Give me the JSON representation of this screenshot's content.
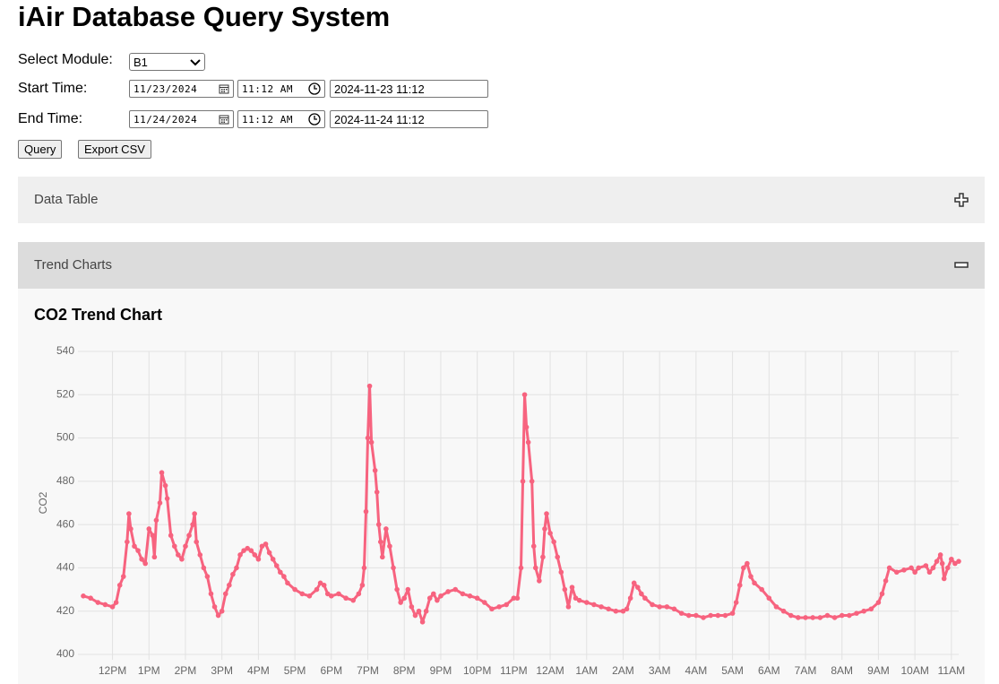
{
  "header": {
    "title": "iAir Database Query System"
  },
  "form": {
    "module_label": "Select Module:",
    "module_value": "B1",
    "start_label": "Start Time:",
    "start_date": "11/23/2024",
    "start_clock": "11:12 AM",
    "start_text": "2024-11-23 11:12",
    "end_label": "End Time:",
    "end_date": "11/24/2024",
    "end_clock": "11:12 AM",
    "end_text": "2024-11-24 11:12",
    "query_button": "Query",
    "export_button": "Export CSV"
  },
  "panels": [
    "Data Table",
    "Trend Charts"
  ],
  "chart_data": {
    "type": "line",
    "title": "CO2 Trend Chart",
    "y_label": "CO2",
    "color": "#f7637f",
    "grid": true,
    "xlim": [
      11.2,
      35.2
    ],
    "ylim": [
      400,
      540
    ],
    "xticks": [
      {
        "value": 12,
        "label": "12PM"
      },
      {
        "value": 13,
        "label": "1PM"
      },
      {
        "value": 14,
        "label": "2PM"
      },
      {
        "value": 15,
        "label": "3PM"
      },
      {
        "value": 16,
        "label": "4PM"
      },
      {
        "value": 17,
        "label": "5PM"
      },
      {
        "value": 18,
        "label": "6PM"
      },
      {
        "value": 19,
        "label": "7PM"
      },
      {
        "value": 20,
        "label": "8PM"
      },
      {
        "value": 21,
        "label": "9PM"
      },
      {
        "value": 22,
        "label": "10PM"
      },
      {
        "value": 23,
        "label": "11PM"
      },
      {
        "value": 24,
        "label": "12AM"
      },
      {
        "value": 25,
        "label": "1AM"
      },
      {
        "value": 26,
        "label": "2AM"
      },
      {
        "value": 27,
        "label": "3AM"
      },
      {
        "value": 28,
        "label": "4AM"
      },
      {
        "value": 29,
        "label": "5AM"
      },
      {
        "value": 30,
        "label": "6AM"
      },
      {
        "value": 31,
        "label": "7AM"
      },
      {
        "value": 32,
        "label": "8AM"
      },
      {
        "value": 33,
        "label": "9AM"
      },
      {
        "value": 34,
        "label": "10AM"
      },
      {
        "value": 35,
        "label": "11AM"
      }
    ],
    "yticks": [
      400,
      420,
      440,
      460,
      480,
      500,
      520,
      540
    ],
    "x": [
      11.2,
      11.4,
      11.6,
      11.8,
      12.0,
      12.1,
      12.2,
      12.3,
      12.4,
      12.45,
      12.5,
      12.6,
      12.7,
      12.8,
      12.9,
      13.0,
      13.1,
      13.15,
      13.2,
      13.3,
      13.35,
      13.45,
      13.5,
      13.6,
      13.7,
      13.8,
      13.9,
      14.0,
      14.1,
      14.2,
      14.25,
      14.3,
      14.4,
      14.5,
      14.6,
      14.7,
      14.8,
      14.9,
      15.0,
      15.1,
      15.2,
      15.3,
      15.4,
      15.5,
      15.6,
      15.7,
      15.8,
      15.9,
      16.0,
      16.1,
      16.2,
      16.3,
      16.4,
      16.5,
      16.6,
      16.7,
      16.8,
      17.0,
      17.2,
      17.4,
      17.6,
      17.7,
      17.8,
      17.9,
      18.0,
      18.2,
      18.4,
      18.6,
      18.75,
      18.85,
      18.9,
      18.95,
      19.0,
      19.05,
      19.1,
      19.2,
      19.25,
      19.3,
      19.35,
      19.4,
      19.5,
      19.6,
      19.7,
      19.8,
      19.9,
      20.0,
      20.1,
      20.2,
      20.3,
      20.4,
      20.5,
      20.6,
      20.7,
      20.8,
      20.9,
      21.0,
      21.2,
      21.4,
      21.6,
      21.8,
      22.0,
      22.2,
      22.4,
      22.6,
      22.8,
      23.0,
      23.1,
      23.2,
      23.25,
      23.3,
      23.35,
      23.4,
      23.5,
      23.55,
      23.6,
      23.7,
      23.8,
      23.85,
      23.9,
      24.0,
      24.1,
      24.2,
      24.3,
      24.4,
      24.5,
      24.6,
      24.7,
      24.8,
      25.0,
      25.2,
      25.4,
      25.6,
      25.8,
      26.0,
      26.1,
      26.2,
      26.3,
      26.4,
      26.5,
      26.6,
      26.8,
      27.0,
      27.2,
      27.4,
      27.6,
      27.8,
      28.0,
      28.2,
      28.4,
      28.6,
      28.8,
      29.0,
      29.1,
      29.2,
      29.3,
      29.4,
      29.5,
      29.6,
      29.8,
      30.0,
      30.2,
      30.4,
      30.6,
      30.8,
      31.0,
      31.2,
      31.4,
      31.6,
      31.8,
      32.0,
      32.2,
      32.4,
      32.6,
      32.8,
      33.0,
      33.1,
      33.2,
      33.3,
      33.5,
      33.7,
      33.9,
      34.0,
      34.1,
      34.3,
      34.4,
      34.5,
      34.6,
      34.7,
      34.75,
      34.8,
      34.9,
      35.0,
      35.1,
      35.2
    ],
    "values": [
      427,
      426,
      424,
      423,
      422,
      424,
      432,
      436,
      452,
      465,
      458,
      450,
      448,
      444,
      442,
      458,
      455,
      445,
      462,
      470,
      484,
      478,
      472,
      455,
      450,
      446,
      444,
      450,
      455,
      460,
      465,
      452,
      446,
      440,
      436,
      428,
      422,
      418,
      420,
      428,
      432,
      437,
      440,
      446,
      448,
      449,
      448,
      446,
      444,
      450,
      451,
      447,
      444,
      441,
      438,
      436,
      433,
      430,
      428,
      427,
      430,
      433,
      432,
      428,
      427,
      428,
      426,
      425,
      428,
      432,
      440,
      466,
      500,
      524,
      498,
      485,
      475,
      460,
      452,
      445,
      458,
      450,
      440,
      430,
      424,
      426,
      430,
      422,
      418,
      420,
      415,
      420,
      426,
      428,
      425,
      427,
      429,
      430,
      428,
      427,
      426,
      424,
      421,
      422,
      423,
      426,
      426,
      440,
      480,
      520,
      505,
      498,
      480,
      450,
      440,
      434,
      445,
      458,
      465,
      456,
      452,
      445,
      438,
      430,
      422,
      431,
      426,
      425,
      424,
      423,
      422,
      421,
      420,
      420,
      421,
      426,
      433,
      431,
      428,
      426,
      423,
      422,
      422,
      421,
      419,
      418,
      418,
      417,
      418,
      418,
      418,
      419,
      424,
      432,
      440,
      442,
      436,
      433,
      430,
      426,
      422,
      420,
      418,
      417,
      417,
      417,
      417,
      418,
      417,
      418,
      418,
      419,
      420,
      421,
      424,
      428,
      434,
      440,
      438,
      439,
      440,
      438,
      440,
      441,
      438,
      440,
      443,
      446,
      442,
      435,
      440,
      444,
      442,
      443
    ]
  }
}
